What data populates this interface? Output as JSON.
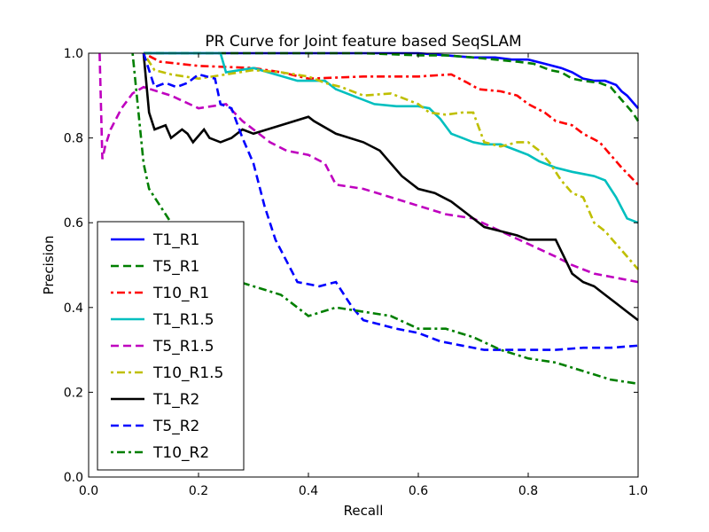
{
  "chart_data": {
    "type": "line",
    "title": "PR Curve for Joint feature based SeqSLAM",
    "xlabel": "Recall",
    "ylabel": "Precision",
    "xlim": [
      0.0,
      1.0
    ],
    "ylim": [
      0.0,
      1.0
    ],
    "xticks": [
      "0.0",
      "0.2",
      "0.4",
      "0.6",
      "0.8",
      "1.0"
    ],
    "yticks": [
      "0.0",
      "0.2",
      "0.4",
      "0.6",
      "0.8",
      "1.0"
    ],
    "grid": false,
    "legend_position": "lower left",
    "series": [
      {
        "name": "T1_R1",
        "color": "#0000ff",
        "style": "solid",
        "x": [
          0.1,
          0.2,
          0.4,
          0.5,
          0.6,
          0.65,
          0.7,
          0.74,
          0.77,
          0.8,
          0.83,
          0.86,
          0.88,
          0.9,
          0.92,
          0.94,
          0.96,
          0.97,
          0.98,
          0.99,
          1.0
        ],
        "y": [
          1.0,
          1.0,
          1.0,
          1.0,
          1.0,
          0.995,
          0.99,
          0.99,
          0.985,
          0.985,
          0.975,
          0.965,
          0.955,
          0.94,
          0.935,
          0.935,
          0.925,
          0.91,
          0.9,
          0.885,
          0.87
        ]
      },
      {
        "name": "T5_R1",
        "color": "#007f00",
        "style": "dashed",
        "x": [
          0.1,
          0.2,
          0.3,
          0.4,
          0.5,
          0.6,
          0.65,
          0.7,
          0.74,
          0.78,
          0.81,
          0.84,
          0.86,
          0.88,
          0.9,
          0.93,
          0.95,
          0.97,
          0.99,
          1.0
        ],
        "y": [
          1.0,
          1.0,
          1.0,
          1.0,
          1.0,
          0.995,
          0.995,
          0.99,
          0.985,
          0.98,
          0.975,
          0.96,
          0.955,
          0.94,
          0.935,
          0.93,
          0.92,
          0.89,
          0.86,
          0.84
        ]
      },
      {
        "name": "T10_R1",
        "color": "#ff0000",
        "style": "dashdot",
        "x": [
          0.1,
          0.13,
          0.2,
          0.3,
          0.35,
          0.4,
          0.5,
          0.6,
          0.66,
          0.69,
          0.71,
          0.75,
          0.78,
          0.8,
          0.83,
          0.85,
          0.88,
          0.9,
          0.93,
          0.95,
          0.97,
          1.0
        ],
        "y": [
          1.0,
          0.98,
          0.97,
          0.965,
          0.955,
          0.94,
          0.945,
          0.945,
          0.95,
          0.93,
          0.915,
          0.91,
          0.9,
          0.88,
          0.86,
          0.84,
          0.83,
          0.81,
          0.79,
          0.76,
          0.73,
          0.69
        ]
      },
      {
        "name": "T1_R1.5",
        "color": "#00bfbf",
        "style": "solid",
        "x": [
          0.1,
          0.15,
          0.2,
          0.24,
          0.25,
          0.3,
          0.34,
          0.38,
          0.43,
          0.45,
          0.48,
          0.52,
          0.56,
          0.6,
          0.62,
          0.64,
          0.66,
          0.68,
          0.7,
          0.72,
          0.75,
          0.78,
          0.8,
          0.82,
          0.85,
          0.88,
          0.9,
          0.92,
          0.94,
          0.96,
          0.98,
          1.0
        ],
        "y": [
          1.0,
          1.0,
          1.0,
          1.0,
          0.955,
          0.965,
          0.95,
          0.935,
          0.935,
          0.915,
          0.9,
          0.88,
          0.875,
          0.875,
          0.87,
          0.845,
          0.81,
          0.8,
          0.79,
          0.785,
          0.785,
          0.77,
          0.76,
          0.745,
          0.73,
          0.72,
          0.715,
          0.71,
          0.7,
          0.66,
          0.61,
          0.6
        ]
      },
      {
        "name": "T5_R1.5",
        "color": "#bf00bf",
        "style": "dashed",
        "x": [
          0.02,
          0.025,
          0.03,
          0.04,
          0.06,
          0.08,
          0.1,
          0.15,
          0.2,
          0.25,
          0.28,
          0.3,
          0.33,
          0.36,
          0.4,
          0.43,
          0.45,
          0.5,
          0.55,
          0.6,
          0.65,
          0.7,
          0.75,
          0.8,
          0.85,
          0.88,
          0.92,
          0.96,
          1.0
        ],
        "y": [
          1.0,
          0.75,
          0.78,
          0.82,
          0.87,
          0.905,
          0.92,
          0.9,
          0.87,
          0.88,
          0.84,
          0.82,
          0.79,
          0.77,
          0.76,
          0.74,
          0.69,
          0.68,
          0.66,
          0.64,
          0.62,
          0.61,
          0.58,
          0.55,
          0.52,
          0.5,
          0.48,
          0.47,
          0.46
        ]
      },
      {
        "name": "T10_R1.5",
        "color": "#bfbf00",
        "style": "dashdot",
        "x": [
          0.1,
          0.12,
          0.15,
          0.2,
          0.25,
          0.3,
          0.35,
          0.4,
          0.43,
          0.46,
          0.5,
          0.55,
          0.6,
          0.62,
          0.65,
          0.68,
          0.7,
          0.72,
          0.75,
          0.78,
          0.8,
          0.82,
          0.84,
          0.86,
          0.88,
          0.9,
          0.92,
          0.94,
          0.96,
          0.98,
          1.0
        ],
        "y": [
          1.0,
          0.96,
          0.95,
          0.94,
          0.95,
          0.96,
          0.955,
          0.945,
          0.93,
          0.92,
          0.9,
          0.905,
          0.88,
          0.86,
          0.855,
          0.86,
          0.86,
          0.79,
          0.78,
          0.79,
          0.79,
          0.77,
          0.74,
          0.7,
          0.67,
          0.66,
          0.6,
          0.58,
          0.55,
          0.52,
          0.49
        ]
      },
      {
        "name": "T1_R2",
        "color": "#000000",
        "style": "solid",
        "x": [
          0.1,
          0.11,
          0.12,
          0.14,
          0.15,
          0.17,
          0.18,
          0.19,
          0.21,
          0.22,
          0.24,
          0.26,
          0.28,
          0.3,
          0.35,
          0.4,
          0.41,
          0.45,
          0.5,
          0.53,
          0.55,
          0.57,
          0.6,
          0.63,
          0.66,
          0.68,
          0.7,
          0.72,
          0.75,
          0.78,
          0.8,
          0.85,
          0.88,
          0.9,
          0.92,
          0.94,
          0.96,
          0.98,
          1.0
        ],
        "y": [
          1.0,
          0.86,
          0.82,
          0.83,
          0.8,
          0.82,
          0.81,
          0.79,
          0.82,
          0.8,
          0.79,
          0.8,
          0.82,
          0.81,
          0.83,
          0.85,
          0.84,
          0.81,
          0.79,
          0.77,
          0.74,
          0.71,
          0.68,
          0.67,
          0.65,
          0.63,
          0.61,
          0.59,
          0.58,
          0.57,
          0.56,
          0.56,
          0.48,
          0.46,
          0.45,
          0.43,
          0.41,
          0.39,
          0.37
        ]
      },
      {
        "name": "T5_R2",
        "color": "#0000ff",
        "style": "dashed",
        "x": [
          0.1,
          0.12,
          0.14,
          0.16,
          0.18,
          0.2,
          0.23,
          0.24,
          0.26,
          0.28,
          0.3,
          0.32,
          0.34,
          0.36,
          0.38,
          0.42,
          0.45,
          0.48,
          0.5,
          0.53,
          0.56,
          0.6,
          0.64,
          0.68,
          0.72,
          0.76,
          0.8,
          0.85,
          0.9,
          0.95,
          1.0
        ],
        "y": [
          1.0,
          0.92,
          0.93,
          0.92,
          0.93,
          0.95,
          0.94,
          0.88,
          0.87,
          0.8,
          0.74,
          0.64,
          0.56,
          0.51,
          0.46,
          0.45,
          0.46,
          0.4,
          0.37,
          0.36,
          0.35,
          0.34,
          0.32,
          0.31,
          0.3,
          0.3,
          0.3,
          0.3,
          0.305,
          0.305,
          0.31
        ]
      },
      {
        "name": "T10_R2",
        "color": "#007f00",
        "style": "dashdot",
        "x": [
          0.08,
          0.1,
          0.11,
          0.12,
          0.13,
          0.14,
          0.15,
          0.16,
          0.2,
          0.25,
          0.3,
          0.35,
          0.38,
          0.4,
          0.45,
          0.5,
          0.55,
          0.6,
          0.65,
          0.7,
          0.75,
          0.8,
          0.85,
          0.9,
          0.95,
          1.0
        ],
        "y": [
          1.0,
          0.74,
          0.68,
          0.66,
          0.64,
          0.62,
          0.6,
          0.58,
          0.52,
          0.47,
          0.45,
          0.43,
          0.4,
          0.38,
          0.4,
          0.39,
          0.38,
          0.35,
          0.35,
          0.33,
          0.3,
          0.28,
          0.27,
          0.25,
          0.23,
          0.22
        ]
      }
    ]
  }
}
